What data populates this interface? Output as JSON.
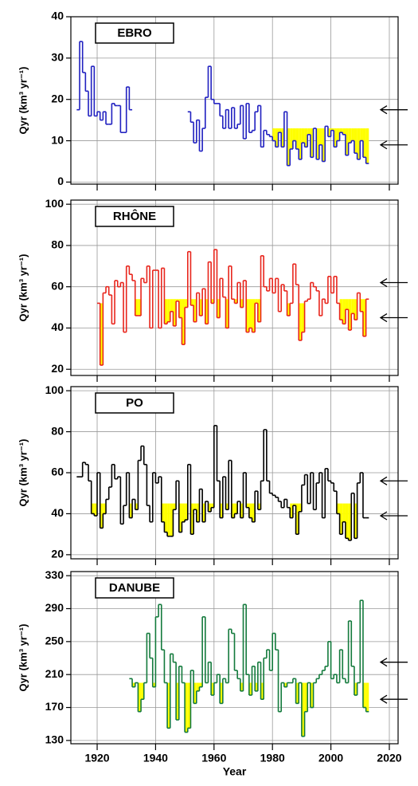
{
  "chart_data": [
    {
      "type": "step",
      "label": "EBRO",
      "ylabel": "Qyr (km³ yr⁻¹)",
      "color": "#2020c0",
      "fill_color": "#ffff00",
      "grid": true,
      "xlim": [
        1911,
        2023
      ],
      "xticks": [
        1920,
        1940,
        1960,
        1980,
        2000,
        2020
      ],
      "ylim": [
        -0.5,
        40
      ],
      "yticks": [
        0,
        10,
        20,
        30,
        40
      ],
      "x": [
        1913,
        1914,
        1915,
        1916,
        1917,
        1918,
        1919,
        1920,
        1921,
        1922,
        1923,
        1924,
        1925,
        1926,
        1927,
        1928,
        1929,
        1930,
        1931,
        1932,
        1933,
        1934,
        1935,
        1936,
        1937,
        1938,
        1939,
        1940,
        1941,
        1942,
        1943,
        1944,
        1945,
        1946,
        1947,
        1948,
        1949,
        1950,
        1951,
        1952,
        1953,
        1954,
        1955,
        1956,
        1957,
        1958,
        1959,
        1960,
        1961,
        1962,
        1963,
        1964,
        1965,
        1966,
        1967,
        1968,
        1969,
        1970,
        1971,
        1972,
        1973,
        1974,
        1975,
        1976,
        1977,
        1978,
        1979,
        1980,
        1981,
        1982,
        1983,
        1984,
        1985,
        1986,
        1987,
        1988,
        1989,
        1990,
        1991,
        1992,
        1993,
        1994,
        1995,
        1996,
        1997,
        1998,
        1999,
        2000,
        2001,
        2002,
        2003,
        2004,
        2005,
        2006,
        2007,
        2008,
        2009,
        2010,
        2011,
        2012
      ],
      "values": [
        17.5,
        34,
        26.5,
        22,
        16,
        28,
        16,
        17,
        15,
        17,
        14,
        14,
        19,
        18.5,
        18.5,
        12,
        12,
        23,
        17.5,
        null,
        null,
        null,
        null,
        null,
        null,
        null,
        null,
        null,
        null,
        null,
        null,
        null,
        null,
        null,
        null,
        null,
        null,
        null,
        17,
        14.5,
        9.5,
        15,
        7.5,
        13,
        20.5,
        28,
        20,
        19,
        19,
        16,
        13,
        17.5,
        13,
        18,
        13,
        14,
        18.5,
        10.5,
        19,
        12,
        12.5,
        17,
        18.5,
        8.5,
        12.5,
        11.5,
        11,
        10,
        8.5,
        12,
        8.5,
        17,
        4,
        8,
        10,
        8,
        5.5,
        9.5,
        8.5,
        11.5,
        6,
        13,
        5.5,
        9,
        5,
        13.5,
        11,
        12.5,
        8.5,
        10,
        12,
        11.5,
        6.5,
        9.5,
        10,
        7,
        5.5,
        10,
        6,
        4.5
      ],
      "fills": [
        {
          "start": 1957,
          "end": 1960,
          "level": 13
        },
        {
          "start": 1980,
          "end": 2013,
          "level": 13
        }
      ],
      "arrows": [
        17.5,
        9
      ]
    },
    {
      "type": "step",
      "label": "RHÔNE",
      "ylabel": "Qyr (km³ yr⁻¹)",
      "color": "#e8251c",
      "fill_color": "#ffff00",
      "grid": true,
      "xlim": [
        1911,
        2023
      ],
      "xticks": [
        1920,
        1940,
        1960,
        1980,
        2000,
        2020
      ],
      "ylim": [
        17,
        102
      ],
      "yticks": [
        20,
        40,
        60,
        80,
        100
      ],
      "x": [
        1920,
        1921,
        1922,
        1923,
        1924,
        1925,
        1926,
        1927,
        1928,
        1929,
        1930,
        1931,
        1932,
        1933,
        1934,
        1935,
        1936,
        1937,
        1938,
        1939,
        1940,
        1941,
        1942,
        1943,
        1944,
        1945,
        1946,
        1947,
        1948,
        1949,
        1950,
        1951,
        1952,
        1953,
        1954,
        1955,
        1956,
        1957,
        1958,
        1959,
        1960,
        1961,
        1962,
        1963,
        1964,
        1965,
        1966,
        1967,
        1968,
        1969,
        1970,
        1971,
        1972,
        1973,
        1974,
        1975,
        1976,
        1977,
        1978,
        1979,
        1980,
        1981,
        1982,
        1983,
        1984,
        1985,
        1986,
        1987,
        1988,
        1989,
        1990,
        1991,
        1992,
        1993,
        1994,
        1995,
        1996,
        1997,
        1998,
        1999,
        2000,
        2001,
        2002,
        2003,
        2004,
        2005,
        2006,
        2007,
        2008,
        2009,
        2010,
        2011,
        2012
      ],
      "values": [
        52,
        22,
        57,
        60,
        56,
        42,
        63,
        60,
        62,
        38,
        70,
        66,
        63,
        46,
        46,
        64,
        62,
        70,
        40,
        68,
        68,
        40,
        69,
        42,
        43,
        48,
        41,
        53,
        45,
        32,
        50,
        77,
        51,
        43,
        57,
        46,
        59,
        42,
        72,
        52,
        78,
        45,
        64,
        55,
        40,
        70,
        54,
        52,
        62,
        50,
        63,
        38,
        40,
        38,
        52,
        43,
        75,
        60,
        58,
        64,
        57,
        64,
        48,
        61,
        58,
        46,
        52,
        71,
        61,
        34,
        38,
        53,
        54,
        62,
        60,
        58,
        46,
        54,
        52,
        65,
        57,
        65,
        52,
        44,
        42,
        49,
        39,
        47,
        44,
        57,
        48,
        36,
        54
      ],
      "fills": [
        {
          "start": 1920,
          "end": 1922,
          "level": 52
        },
        {
          "start": 1933,
          "end": 1937,
          "level": 54
        },
        {
          "start": 1943,
          "end": 1980,
          "level": 54
        },
        {
          "start": 1984,
          "end": 1993,
          "level": 52
        },
        {
          "start": 2003,
          "end": 2013,
          "level": 54
        }
      ],
      "arrows": [
        62,
        45
      ]
    },
    {
      "type": "step",
      "label": "PO",
      "ylabel": "Qyr (km³ yr⁻¹)",
      "color": "#000000",
      "fill_color": "#ffff00",
      "grid": true,
      "xlim": [
        1911,
        2023
      ],
      "xticks": [
        1920,
        1940,
        1960,
        1980,
        2000,
        2020
      ],
      "ylim": [
        18,
        102
      ],
      "yticks": [
        20,
        40,
        60,
        80,
        100
      ],
      "x": [
        1913,
        1914,
        1915,
        1916,
        1917,
        1918,
        1919,
        1920,
        1921,
        1922,
        1923,
        1924,
        1925,
        1926,
        1927,
        1928,
        1929,
        1930,
        1931,
        1932,
        1933,
        1934,
        1935,
        1936,
        1937,
        1938,
        1939,
        1940,
        1941,
        1942,
        1943,
        1944,
        1945,
        1946,
        1947,
        1948,
        1949,
        1950,
        1951,
        1952,
        1953,
        1954,
        1955,
        1956,
        1957,
        1958,
        1959,
        1960,
        1961,
        1962,
        1963,
        1964,
        1965,
        1966,
        1967,
        1968,
        1969,
        1970,
        1971,
        1972,
        1973,
        1974,
        1975,
        1976,
        1977,
        1978,
        1979,
        1980,
        1981,
        1982,
        1983,
        1984,
        1985,
        1986,
        1987,
        1988,
        1989,
        1990,
        1991,
        1992,
        1993,
        1994,
        1995,
        1996,
        1997,
        1998,
        1999,
        2000,
        2001,
        2002,
        2003,
        2004,
        2005,
        2006,
        2007,
        2008,
        2009,
        2010,
        2011,
        2012
      ],
      "values": [
        58,
        58,
        65,
        64,
        56,
        40,
        39,
        60,
        33,
        40,
        47,
        53,
        64,
        57,
        58,
        35,
        44,
        60,
        38,
        47,
        42,
        66,
        73,
        64,
        44,
        36,
        60,
        55,
        58,
        36,
        31,
        29,
        29,
        42,
        56,
        31,
        36,
        37,
        64,
        30,
        42,
        36,
        52,
        36,
        46,
        41,
        43,
        83,
        56,
        38,
        58,
        42,
        66,
        38,
        40,
        46,
        38,
        60,
        43,
        38,
        36,
        51,
        42,
        56,
        81,
        56,
        50,
        49,
        48,
        46,
        43,
        47,
        43,
        38,
        44,
        30,
        41,
        54,
        59,
        45,
        60,
        42,
        55,
        60,
        38,
        62,
        56,
        55,
        51,
        40,
        30,
        36,
        28,
        27,
        50,
        28,
        55,
        60,
        38,
        38
      ],
      "fills": [
        {
          "start": 1918,
          "end": 1923,
          "level": 45
        },
        {
          "start": 1931,
          "end": 1934,
          "level": 45
        },
        {
          "start": 1942,
          "end": 1981,
          "level": 45
        },
        {
          "start": 1986,
          "end": 1990,
          "level": 45
        },
        {
          "start": 2002,
          "end": 2010,
          "level": 45
        }
      ],
      "arrows": [
        56,
        39
      ]
    },
    {
      "type": "step",
      "label": "DANUBE",
      "ylabel": "Qyr (km³ yr⁻¹)",
      "xlabel": "Year",
      "color": "#137a3c",
      "fill_color": "#ffff00",
      "grid": true,
      "xlim": [
        1911,
        2023
      ],
      "xticks": [
        1920,
        1940,
        1960,
        1980,
        2000,
        2020
      ],
      "ylim": [
        126,
        335
      ],
      "yticks": [
        130,
        170,
        210,
        250,
        290,
        330
      ],
      "x": [
        1931,
        1932,
        1933,
        1934,
        1935,
        1936,
        1937,
        1938,
        1939,
        1940,
        1941,
        1942,
        1943,
        1944,
        1945,
        1946,
        1947,
        1948,
        1949,
        1950,
        1951,
        1952,
        1953,
        1954,
        1955,
        1956,
        1957,
        1958,
        1959,
        1960,
        1961,
        1962,
        1963,
        1964,
        1965,
        1966,
        1967,
        1968,
        1969,
        1970,
        1971,
        1972,
        1973,
        1974,
        1975,
        1976,
        1977,
        1978,
        1979,
        1980,
        1981,
        1982,
        1983,
        1984,
        1985,
        1986,
        1987,
        1988,
        1989,
        1990,
        1991,
        1992,
        1993,
        1994,
        1995,
        1996,
        1997,
        1998,
        1999,
        2000,
        2001,
        2002,
        2003,
        2004,
        2005,
        2006,
        2007,
        2008,
        2009,
        2010,
        2011,
        2012
      ],
      "values": [
        205,
        195,
        200,
        165,
        180,
        200,
        260,
        230,
        195,
        280,
        295,
        240,
        200,
        145,
        235,
        225,
        155,
        220,
        200,
        140,
        145,
        215,
        175,
        190,
        195,
        280,
        200,
        225,
        185,
        200,
        210,
        175,
        205,
        200,
        265,
        260,
        215,
        205,
        190,
        295,
        210,
        185,
        220,
        190,
        225,
        180,
        230,
        240,
        215,
        260,
        240,
        165,
        200,
        195,
        200,
        200,
        205,
        175,
        200,
        135,
        165,
        200,
        170,
        200,
        205,
        210,
        215,
        220,
        250,
        205,
        210,
        200,
        240,
        205,
        200,
        275,
        220,
        185,
        200,
        300,
        170,
        165
      ],
      "fills": [
        {
          "start": 1932,
          "end": 1937,
          "level": 200
        },
        {
          "start": 1939,
          "end": 1960,
          "level": 200
        },
        {
          "start": 1961,
          "end": 1982,
          "level": 200
        },
        {
          "start": 1984,
          "end": 1995,
          "level": 200
        },
        {
          "start": 2006,
          "end": 2013,
          "level": 200
        }
      ],
      "arrows": [
        225,
        180
      ]
    }
  ]
}
